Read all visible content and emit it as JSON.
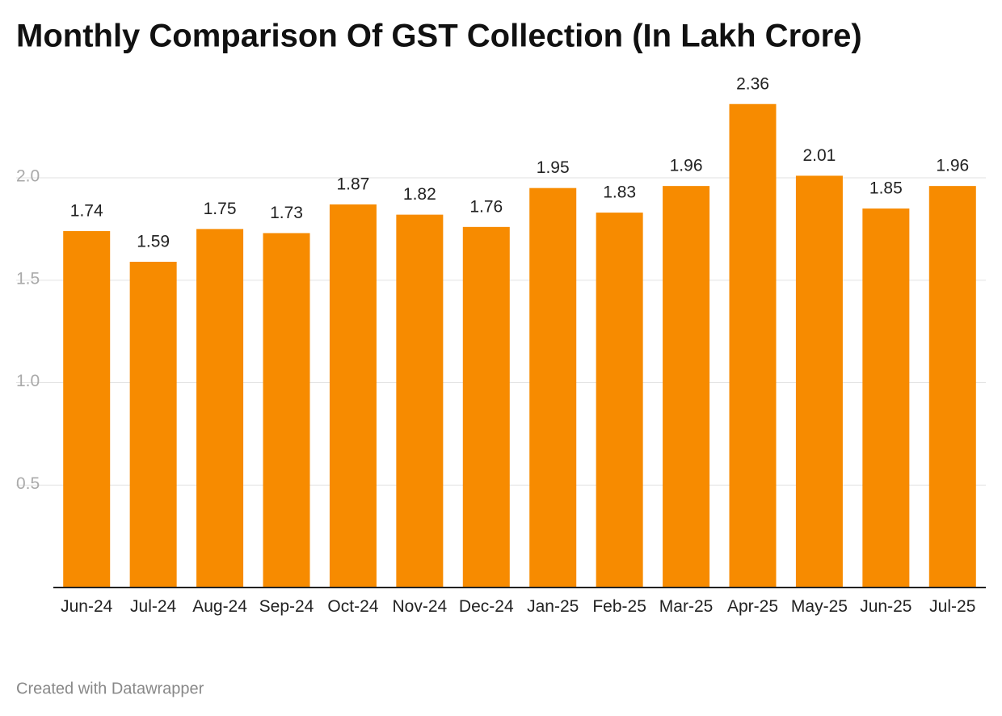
{
  "chart_data": {
    "type": "bar",
    "title": "Monthly Comparison Of GST Collection (In Lakh Crore)",
    "categories": [
      "Jun-24",
      "Jul-24",
      "Aug-24",
      "Sep-24",
      "Oct-24",
      "Nov-24",
      "Dec-24",
      "Jan-25",
      "Feb-25",
      "Mar-25",
      "Apr-25",
      "May-25",
      "Jun-25",
      "Jul-25"
    ],
    "values": [
      1.74,
      1.59,
      1.75,
      1.73,
      1.87,
      1.82,
      1.76,
      1.95,
      1.83,
      1.96,
      2.36,
      2.01,
      1.85,
      1.96
    ],
    "color": "#f78b00",
    "ylim": [
      0,
      2.5
    ],
    "yticks": [
      0.5,
      {
        "value": 1,
        "label": "1.0"
      },
      1.5,
      {
        "value": 2,
        "label": "2.0"
      }
    ],
    "grid": true,
    "footer": "Created with Datawrapper"
  }
}
